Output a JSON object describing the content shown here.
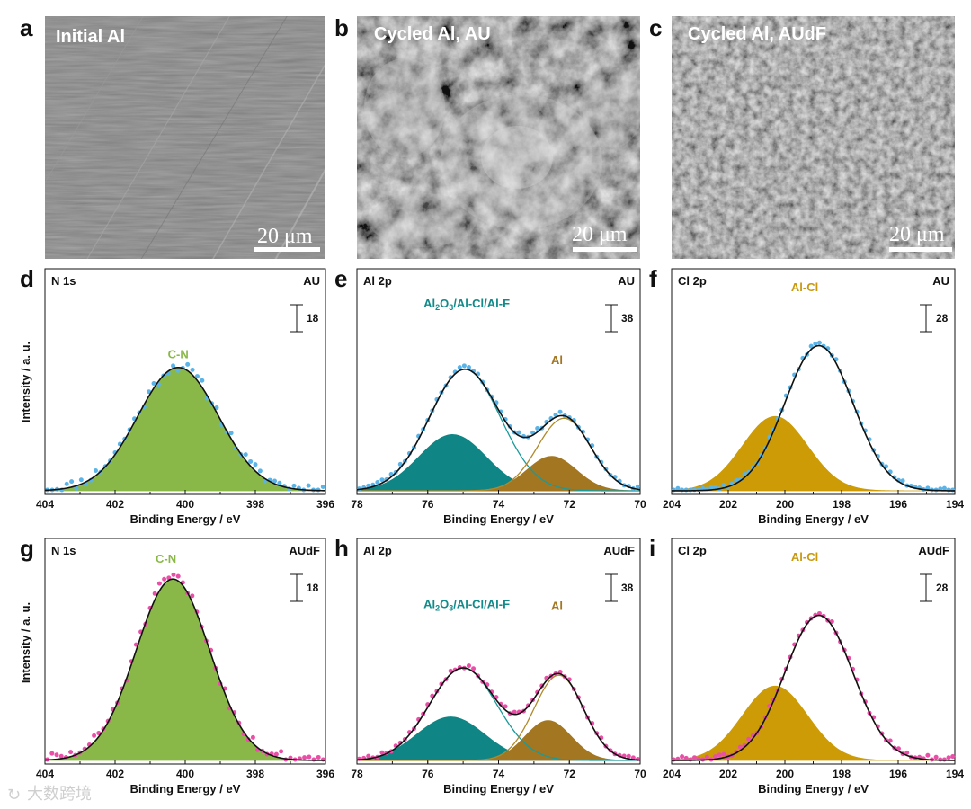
{
  "figure": {
    "sem_panels": [
      {
        "letter": "a",
        "title": "Initial Al",
        "scale_bar": "20 μm",
        "texture": "smooth",
        "base_color": "#7f7f7f"
      },
      {
        "letter": "b",
        "title": "Cycled Al, AU",
        "scale_bar": "20 μm",
        "texture": "rough",
        "base_color": "#6c6c6c"
      },
      {
        "letter": "c",
        "title": "Cycled Al, AUdF",
        "scale_bar": "20 μm",
        "texture": "granular",
        "base_color": "#7a7a7a"
      }
    ],
    "y_axis_label": "Intensity / a. u.",
    "x_axis_label": "Binding Energy / eV",
    "watermark": "大数跨境"
  },
  "chart_data": [
    {
      "type": "line",
      "letter": "d",
      "title": "N 1s",
      "condition": "AU",
      "xlabel": "Binding Energy / eV",
      "ylabel": "Intensity / a. u.",
      "xlim": [
        404,
        396
      ],
      "xticks": [
        404,
        402,
        400,
        398,
        396
      ],
      "scale_bar": "18",
      "components": [
        {
          "name": "C-N",
          "center": 400.2,
          "height": 0.68,
          "sigma": 1.15,
          "color": "#7aa832",
          "filled": true,
          "fill": "#8ab848"
        }
      ],
      "envelope_color": "#111111",
      "points_color": "#5ab4e8",
      "noise": 0.03,
      "n_points": 58,
      "seed": 11,
      "labels": [
        {
          "text": "C-N",
          "x": 400.2,
          "y": 0.73,
          "color": "#8ab848"
        }
      ]
    },
    {
      "type": "line",
      "letter": "e",
      "title": "Al 2p",
      "condition": "AU",
      "xlabel": "Binding Energy / eV",
      "xlim": [
        78,
        70
      ],
      "xticks": [
        78,
        76,
        74,
        72,
        70
      ],
      "scale_bar": "38",
      "components": [
        {
          "name": "Al2O3/Al-Cl/Al-F",
          "center": 75.3,
          "height": 0.31,
          "sigma": 0.95,
          "color": "#128a8a",
          "filled": true,
          "fill": "#0f8585"
        },
        {
          "name": "Al",
          "center": 72.5,
          "height": 0.19,
          "sigma": 0.7,
          "color": "#9c7020",
          "filled": true,
          "fill": "#a37621"
        },
        {
          "name": "Al2O3/Al-Cl/Al-F",
          "center": 74.95,
          "height": 0.67,
          "sigma": 1.0,
          "color": "#1a9a9a",
          "filled": false
        },
        {
          "name": "Al",
          "center": 72.15,
          "height": 0.4,
          "sigma": 0.75,
          "color": "#b08a2a",
          "filled": false
        }
      ],
      "envelope_color": "#111111",
      "points_color": "#5ab4e8",
      "noise": 0.012,
      "n_points": 62,
      "seed": 23,
      "labels": [
        {
          "text": "Al2O3/Al-Cl/Al-F",
          "x": 74.9,
          "y": 1.01,
          "color": "#128a8a",
          "rich": "al2o3"
        },
        {
          "text": "Al",
          "x": 72.35,
          "y": 0.7,
          "color": "#a37621"
        }
      ]
    },
    {
      "type": "line",
      "letter": "f",
      "title": "Cl 2p",
      "condition": "AU",
      "xlabel": "Binding Energy / eV",
      "xlim": [
        204,
        194
      ],
      "xticks": [
        204,
        202,
        200,
        198,
        196,
        194
      ],
      "scale_bar": "28",
      "components": [
        {
          "name": "Al-Cl",
          "center": 200.35,
          "height": 0.41,
          "sigma": 1.15,
          "color": "#c99a10",
          "filled": true,
          "fill": "#cc9b06"
        },
        {
          "name": "Al-Cl",
          "center": 198.8,
          "height": 0.8,
          "sigma": 1.2,
          "color": "#c99a10",
          "filled": false
        }
      ],
      "envelope_color": "#111111",
      "points_color": "#5ab4e8",
      "noise": 0.012,
      "n_points": 68,
      "seed": 37,
      "labels": [
        {
          "text": "Al-Cl",
          "x": 199.3,
          "y": 1.1,
          "color": "#c99a10"
        }
      ]
    },
    {
      "type": "line",
      "letter": "g",
      "title": "N 1s",
      "condition": "AUdF",
      "xlabel": "Binding Energy / eV",
      "ylabel": "Intensity / a. u.",
      "xlim": [
        404,
        396
      ],
      "xticks": [
        404,
        402,
        400,
        398,
        396
      ],
      "scale_bar": "18",
      "components": [
        {
          "name": "C-N",
          "center": 400.35,
          "height": 1.0,
          "sigma": 1.05,
          "color": "#7aa832",
          "filled": true,
          "fill": "#8ab848"
        }
      ],
      "envelope_color": "#111111",
      "points_color": "#ea4fa8",
      "noise": 0.03,
      "n_points": 60,
      "seed": 51,
      "labels": [
        {
          "text": "C-N",
          "x": 400.55,
          "y": 1.09,
          "color": "#8ab848"
        }
      ]
    },
    {
      "type": "line",
      "letter": "h",
      "title": "Al 2p",
      "condition": "AUdF",
      "xlabel": "Binding Energy / eV",
      "xlim": [
        78,
        70
      ],
      "xticks": [
        78,
        76,
        74,
        72,
        70
      ],
      "scale_bar": "38",
      "components": [
        {
          "name": "Al2O3/Al-Cl/Al-F",
          "center": 75.35,
          "height": 0.24,
          "sigma": 0.95,
          "color": "#128a8a",
          "filled": true,
          "fill": "#0f8585"
        },
        {
          "name": "Al",
          "center": 72.6,
          "height": 0.22,
          "sigma": 0.65,
          "color": "#9c7020",
          "filled": true,
          "fill": "#a37621"
        },
        {
          "name": "Al2O3/Al-Cl/Al-F",
          "center": 75.0,
          "height": 0.51,
          "sigma": 0.95,
          "color": "#1a9a9a",
          "filled": false
        },
        {
          "name": "Al",
          "center": 72.3,
          "height": 0.47,
          "sigma": 0.7,
          "color": "#b08a2a",
          "filled": false
        }
      ],
      "envelope_color": "#111111",
      "points_color": "#ea4fa8",
      "noise": 0.012,
      "n_points": 62,
      "seed": 67,
      "labels": [
        {
          "text": "Al2O3/Al-Cl/Al-F",
          "x": 74.9,
          "y": 0.84,
          "color": "#128a8a",
          "rich": "al2o3"
        },
        {
          "text": "Al",
          "x": 72.35,
          "y": 0.83,
          "color": "#a37621"
        }
      ]
    },
    {
      "type": "line",
      "letter": "i",
      "title": "Cl 2p",
      "condition": "AUdF",
      "xlabel": "Binding Energy / eV",
      "xlim": [
        204,
        194
      ],
      "xticks": [
        204,
        202,
        200,
        198,
        196,
        194
      ],
      "scale_bar": "28",
      "components": [
        {
          "name": "Al-Cl",
          "center": 200.35,
          "height": 0.41,
          "sigma": 1.15,
          "color": "#c99a10",
          "filled": true,
          "fill": "#cc9b06"
        },
        {
          "name": "Al-Cl",
          "center": 198.8,
          "height": 0.8,
          "sigma": 1.2,
          "color": "#c99a10",
          "filled": false
        }
      ],
      "envelope_color": "#111111",
      "points_color": "#ea4fa8",
      "noise": 0.014,
      "n_points": 68,
      "seed": 79,
      "labels": [
        {
          "text": "Al-Cl",
          "x": 199.3,
          "y": 1.1,
          "color": "#c99a10"
        }
      ]
    }
  ]
}
